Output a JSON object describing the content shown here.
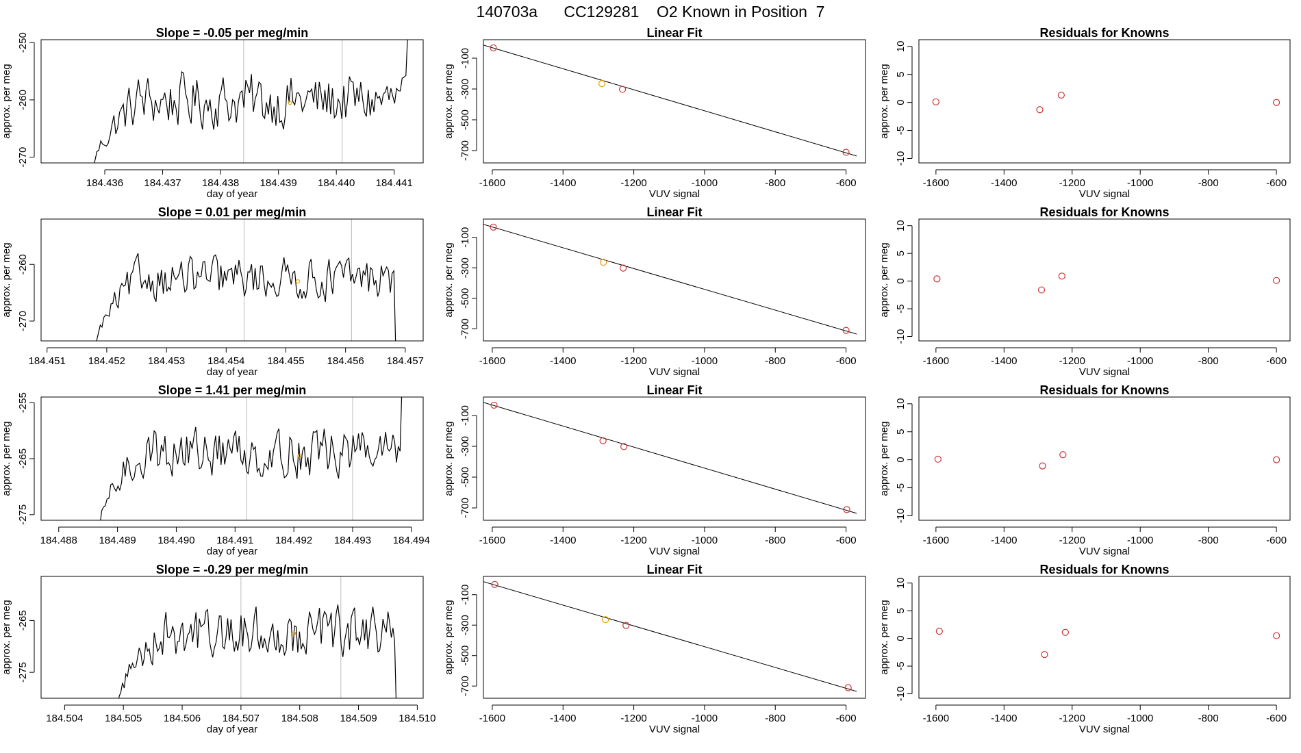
{
  "figure": {
    "title": "140703a      CC129281    O2 Known in Position  7",
    "colors": {
      "line": "#000000",
      "point": "#cc3333",
      "highlight": "#e69f00",
      "marker": "#bbbbbb"
    }
  },
  "chart_data": [
    {
      "type": "line",
      "title": "Slope =  -0.05  per meg/min",
      "xlabel": "day of year",
      "ylabel": "approx. per meg",
      "xlim": [
        184.4349,
        184.4415
      ],
      "ylim": [
        -271.0,
        -249.5
      ],
      "xticks": [
        184.436,
        184.437,
        184.438,
        184.439,
        184.44,
        184.441
      ],
      "xtick_labels": [
        "184.436",
        "184.437",
        "184.438",
        "184.439",
        "184.440",
        "184.441"
      ],
      "yticks": [
        -250,
        -260,
        -270
      ],
      "ytick_labels": [
        "-250",
        "-260",
        "-270"
      ],
      "t_start": 184.4358,
      "t_end": 184.4413,
      "plateau": -260.2,
      "amp": 6.5,
      "start_level": -272,
      "end_level": -248,
      "vlines": [
        184.4384,
        184.4401
      ],
      "highlight": {
        "x": 184.4392,
        "y": -260.5
      }
    },
    {
      "type": "scatter",
      "title": "Linear Fit",
      "xlabel": "VUV signal",
      "ylabel": "approx. per meg",
      "xlim": [
        -1625,
        -545
      ],
      "ylim": [
        -780,
        20
      ],
      "xticks": [
        -1600,
        -1400,
        -1200,
        -1000,
        -800,
        -600
      ],
      "xtick_labels": [
        "-1600",
        "-1400",
        "-1200",
        "-1000",
        "-800",
        "-600"
      ],
      "yticks": [
        -100,
        -300,
        -500,
        -700
      ],
      "ytick_labels": [
        "-100",
        "-300",
        "-500",
        "-700"
      ],
      "x": [
        -1597,
        -1290,
        -1232,
        -600
      ],
      "y": [
        -33,
        -265,
        -302,
        -711
      ],
      "point_colors": [
        "#cc3333",
        "#e69f00",
        "#cc3333",
        "#cc3333"
      ],
      "fit": {
        "x0": -1625,
        "y0": -15,
        "x1": -570,
        "y1": -735
      }
    },
    {
      "type": "scatter",
      "title": "Residuals for Knowns",
      "xlabel": "VUV signal",
      "ylabel": "approx. per meg",
      "xlim": [
        -1650,
        -560
      ],
      "ylim": [
        -10.8,
        11.2
      ],
      "xticks": [
        -1600,
        -1400,
        -1200,
        -1000,
        -800,
        -600
      ],
      "xtick_labels": [
        "-1600",
        "-1400",
        "-1200",
        "-1000",
        "-800",
        "-600"
      ],
      "yticks": [
        10,
        5,
        0,
        -5,
        -10
      ],
      "ytick_labels": [
        "10",
        "5",
        "0",
        "-5",
        "-10"
      ],
      "x": [
        -1600,
        -1295,
        -1232,
        -600
      ],
      "y": [
        0.1,
        -1.3,
        1.3,
        0.0
      ]
    },
    {
      "type": "line",
      "title": "Slope =  0.01  per meg/min",
      "xlabel": "day of year",
      "ylabel": "approx. per meg",
      "xlim": [
        184.4509,
        184.4573
      ],
      "ylim": [
        -273.5,
        -252.0
      ],
      "xticks": [
        184.451,
        184.452,
        184.453,
        184.454,
        184.455,
        184.456,
        184.457
      ],
      "xtick_labels": [
        "184.451",
        "184.452",
        "184.453",
        "184.454",
        "184.455",
        "184.456",
        "184.457"
      ],
      "yticks": [
        -260,
        -270
      ],
      "ytick_labels": [
        "-260",
        "-270"
      ],
      "t_start": 184.4518,
      "t_end": 184.4569,
      "plateau": -262.5,
      "amp": 5.0,
      "start_level": -275,
      "end_level": -275,
      "vlines": [
        184.4543,
        184.4561
      ],
      "highlight": {
        "x": 184.4552,
        "y": -263.0
      }
    },
    {
      "type": "scatter",
      "title": "Linear Fit",
      "xlabel": "VUV signal",
      "ylabel": "approx. per meg",
      "xlim": [
        -1625,
        -545
      ],
      "ylim": [
        -780,
        20
      ],
      "xticks": [
        -1600,
        -1400,
        -1200,
        -1000,
        -800,
        -600
      ],
      "xtick_labels": [
        "-1600",
        "-1400",
        "-1200",
        "-1000",
        "-800",
        "-600"
      ],
      "yticks": [
        -100,
        -300,
        -500,
        -700
      ],
      "ytick_labels": [
        "-100",
        "-300",
        "-500",
        "-700"
      ],
      "x": [
        -1597,
        -1286,
        -1230,
        -600
      ],
      "y": [
        -33,
        -264,
        -302,
        -711
      ],
      "point_colors": [
        "#cc3333",
        "#e69f00",
        "#cc3333",
        "#cc3333"
      ],
      "fit": {
        "x0": -1625,
        "y0": -15,
        "x1": -570,
        "y1": -735
      }
    },
    {
      "type": "scatter",
      "title": "Residuals for Knowns",
      "xlabel": "VUV signal",
      "ylabel": "approx. per meg",
      "xlim": [
        -1650,
        -560
      ],
      "ylim": [
        -10.8,
        11.2
      ],
      "xticks": [
        -1600,
        -1400,
        -1200,
        -1000,
        -800,
        -600
      ],
      "xtick_labels": [
        "-1600",
        "-1400",
        "-1200",
        "-1000",
        "-800",
        "-600"
      ],
      "yticks": [
        10,
        5,
        0,
        -5,
        -10
      ],
      "ytick_labels": [
        "10",
        "5",
        "0",
        "-5",
        "-10"
      ],
      "x": [
        -1597,
        -1290,
        -1230,
        -600
      ],
      "y": [
        0.4,
        -1.6,
        0.9,
        0.1
      ]
    },
    {
      "type": "line",
      "title": "Slope =  1.41  per meg/min",
      "xlabel": "day of year",
      "ylabel": "approx. per meg",
      "xlim": [
        184.4877,
        184.4942
      ],
      "ylim": [
        -276.0,
        -254.0
      ],
      "xticks": [
        184.488,
        184.489,
        184.49,
        184.491,
        184.492,
        184.493,
        184.494
      ],
      "xtick_labels": [
        "184.488",
        "184.489",
        "184.490",
        "184.491",
        "184.492",
        "184.493",
        "184.494"
      ],
      "yticks": [
        -255,
        -265,
        -275
      ],
      "ytick_labels": [
        "-255",
        "-265",
        "-275"
      ],
      "t_start": 184.4887,
      "t_end": 184.4939,
      "plateau": -263.8,
      "amp": 6.0,
      "start_level": -277,
      "end_level": -252,
      "vlines": [
        184.4912,
        184.493
      ],
      "highlight": {
        "x": 184.4921,
        "y": -264.5
      }
    },
    {
      "type": "scatter",
      "title": "Linear Fit",
      "xlabel": "VUV signal",
      "ylabel": "approx. per meg",
      "xlim": [
        -1625,
        -545
      ],
      "ylim": [
        -780,
        20
      ],
      "xticks": [
        -1600,
        -1400,
        -1200,
        -1000,
        -800,
        -600
      ],
      "xtick_labels": [
        "-1600",
        "-1400",
        "-1200",
        "-1000",
        "-800",
        "-600"
      ],
      "yticks": [
        -100,
        -300,
        -500,
        -700
      ],
      "ytick_labels": [
        "-100",
        "-300",
        "-500",
        "-700"
      ],
      "x": [
        -1595,
        -1287,
        -1228,
        -598
      ],
      "y": [
        -33,
        -264,
        -302,
        -711
      ],
      "point_colors": [
        "#cc3333",
        "#cc3333",
        "#cc3333",
        "#cc3333"
      ],
      "fit": {
        "x0": -1625,
        "y0": -15,
        "x1": -570,
        "y1": -735
      }
    },
    {
      "type": "scatter",
      "title": "Residuals for Knowns",
      "xlabel": "VUV signal",
      "ylabel": "approx. per meg",
      "xlim": [
        -1650,
        -560
      ],
      "ylim": [
        -10.8,
        11.2
      ],
      "xticks": [
        -1600,
        -1400,
        -1200,
        -1000,
        -800,
        -600
      ],
      "xtick_labels": [
        "-1600",
        "-1400",
        "-1200",
        "-1000",
        "-800",
        "-600"
      ],
      "yticks": [
        10,
        5,
        0,
        -5,
        -10
      ],
      "ytick_labels": [
        "10",
        "5",
        "0",
        "-5",
        "-10"
      ],
      "x": [
        -1594,
        -1287,
        -1227,
        -600
      ],
      "y": [
        0.1,
        -1.1,
        0.9,
        0.0
      ]
    },
    {
      "type": "line",
      "title": "Slope =  -0.29  per meg/min",
      "xlabel": "day of year",
      "ylabel": "approx. per meg",
      "xlim": [
        184.5036,
        184.5101
      ],
      "ylim": [
        -280.0,
        -256.5
      ],
      "xticks": [
        184.504,
        184.505,
        184.506,
        184.507,
        184.508,
        184.509,
        184.51
      ],
      "xtick_labels": [
        "184.504",
        "184.505",
        "184.506",
        "184.507",
        "184.508",
        "184.509",
        "184.510"
      ],
      "yticks": [
        -265,
        -275
      ],
      "ytick_labels": [
        "-265",
        "-275"
      ],
      "t_start": 184.5049,
      "t_end": 184.5097,
      "plateau": -267.5,
      "amp": 6.5,
      "start_level": -282,
      "end_level": -282,
      "vlines": [
        184.507,
        184.5087
      ],
      "highlight": {
        "x": 184.5079,
        "y": -267.5
      }
    },
    {
      "type": "scatter",
      "title": "Linear Fit",
      "xlabel": "VUV signal",
      "ylabel": "approx. per meg",
      "xlim": [
        -1625,
        -545
      ],
      "ylim": [
        -780,
        20
      ],
      "xticks": [
        -1600,
        -1400,
        -1200,
        -1000,
        -800,
        -600
      ],
      "xtick_labels": [
        "-1600",
        "-1400",
        "-1200",
        "-1000",
        "-800",
        "-600"
      ],
      "yticks": [
        -100,
        -300,
        -500,
        -700
      ],
      "ytick_labels": [
        "-100",
        "-300",
        "-500",
        "-700"
      ],
      "x": [
        -1593,
        -1280,
        -1222,
        -594
      ],
      "y": [
        -33,
        -264,
        -302,
        -711
      ],
      "point_colors": [
        "#cc3333",
        "#e69f00",
        "#cc3333",
        "#cc3333"
      ],
      "fit": {
        "x0": -1625,
        "y0": -15,
        "x1": -570,
        "y1": -735
      }
    },
    {
      "type": "scatter",
      "title": "Residuals for Knowns",
      "xlabel": "VUV signal",
      "ylabel": "approx. per meg",
      "xlim": [
        -1650,
        -560
      ],
      "ylim": [
        -10.8,
        11.2
      ],
      "xticks": [
        -1600,
        -1400,
        -1200,
        -1000,
        -800,
        -600
      ],
      "xtick_labels": [
        "-1600",
        "-1400",
        "-1200",
        "-1000",
        "-800",
        "-600"
      ],
      "yticks": [
        10,
        5,
        0,
        -5,
        -10
      ],
      "ytick_labels": [
        "10",
        "5",
        "0",
        "-5",
        "-10"
      ],
      "x": [
        -1590,
        -1281,
        -1220,
        -600
      ],
      "y": [
        1.3,
        -2.9,
        1.1,
        0.5
      ]
    }
  ]
}
